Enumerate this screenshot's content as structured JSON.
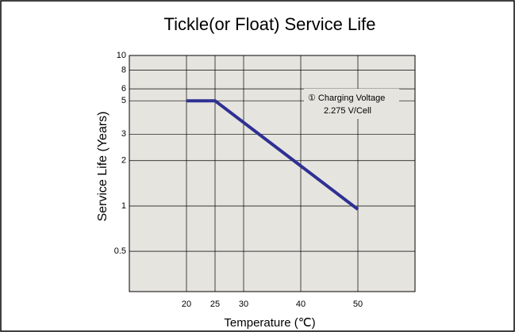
{
  "chart_data": {
    "type": "line",
    "title": "Tickle(or Float) Service Life",
    "xlabel": "Temperature (℃)",
    "ylabel": "Service Life (Years)",
    "annotation": [
      "① Charging Voltage",
      "2.275 V/Cell"
    ],
    "series": [
      {
        "name": "Charging Voltage 2.275 V/Cell",
        "color": "#2e3192",
        "x": [
          20,
          25,
          50
        ],
        "values": [
          5,
          5,
          0.95
        ]
      }
    ],
    "xlim": [
      10,
      60
    ],
    "xticks": [
      20,
      25,
      30,
      40,
      50
    ],
    "ylim": [
      0.27,
      10
    ],
    "yticks": [
      0.5,
      1,
      2,
      3,
      5,
      6,
      8,
      10
    ],
    "ylog": true,
    "grid": true
  }
}
